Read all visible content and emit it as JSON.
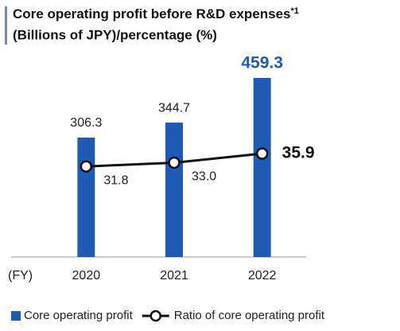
{
  "chart_data": {
    "type": "bar_line",
    "title": "Core operating profit before R&D expenses",
    "title_note": "*1",
    "subtitle": "(Billions of JPY)/percentage (%)",
    "x_label": "(FY)",
    "categories": [
      "2020",
      "2021",
      "2022"
    ],
    "ylim": [
      0,
      500
    ],
    "y2lim": [
      3,
      65
    ],
    "series": [
      {
        "name": "Core operating profit",
        "type": "bar",
        "color": "#1f5bb5",
        "values": [
          306.3,
          344.7,
          459.3
        ]
      },
      {
        "name": "Ratio of core operating profit",
        "type": "line",
        "axis": "y2",
        "color": "#111111",
        "values": [
          31.8,
          33.0,
          35.9
        ],
        "value_labels": [
          "31.8",
          "33.0",
          "35.9"
        ]
      }
    ]
  }
}
